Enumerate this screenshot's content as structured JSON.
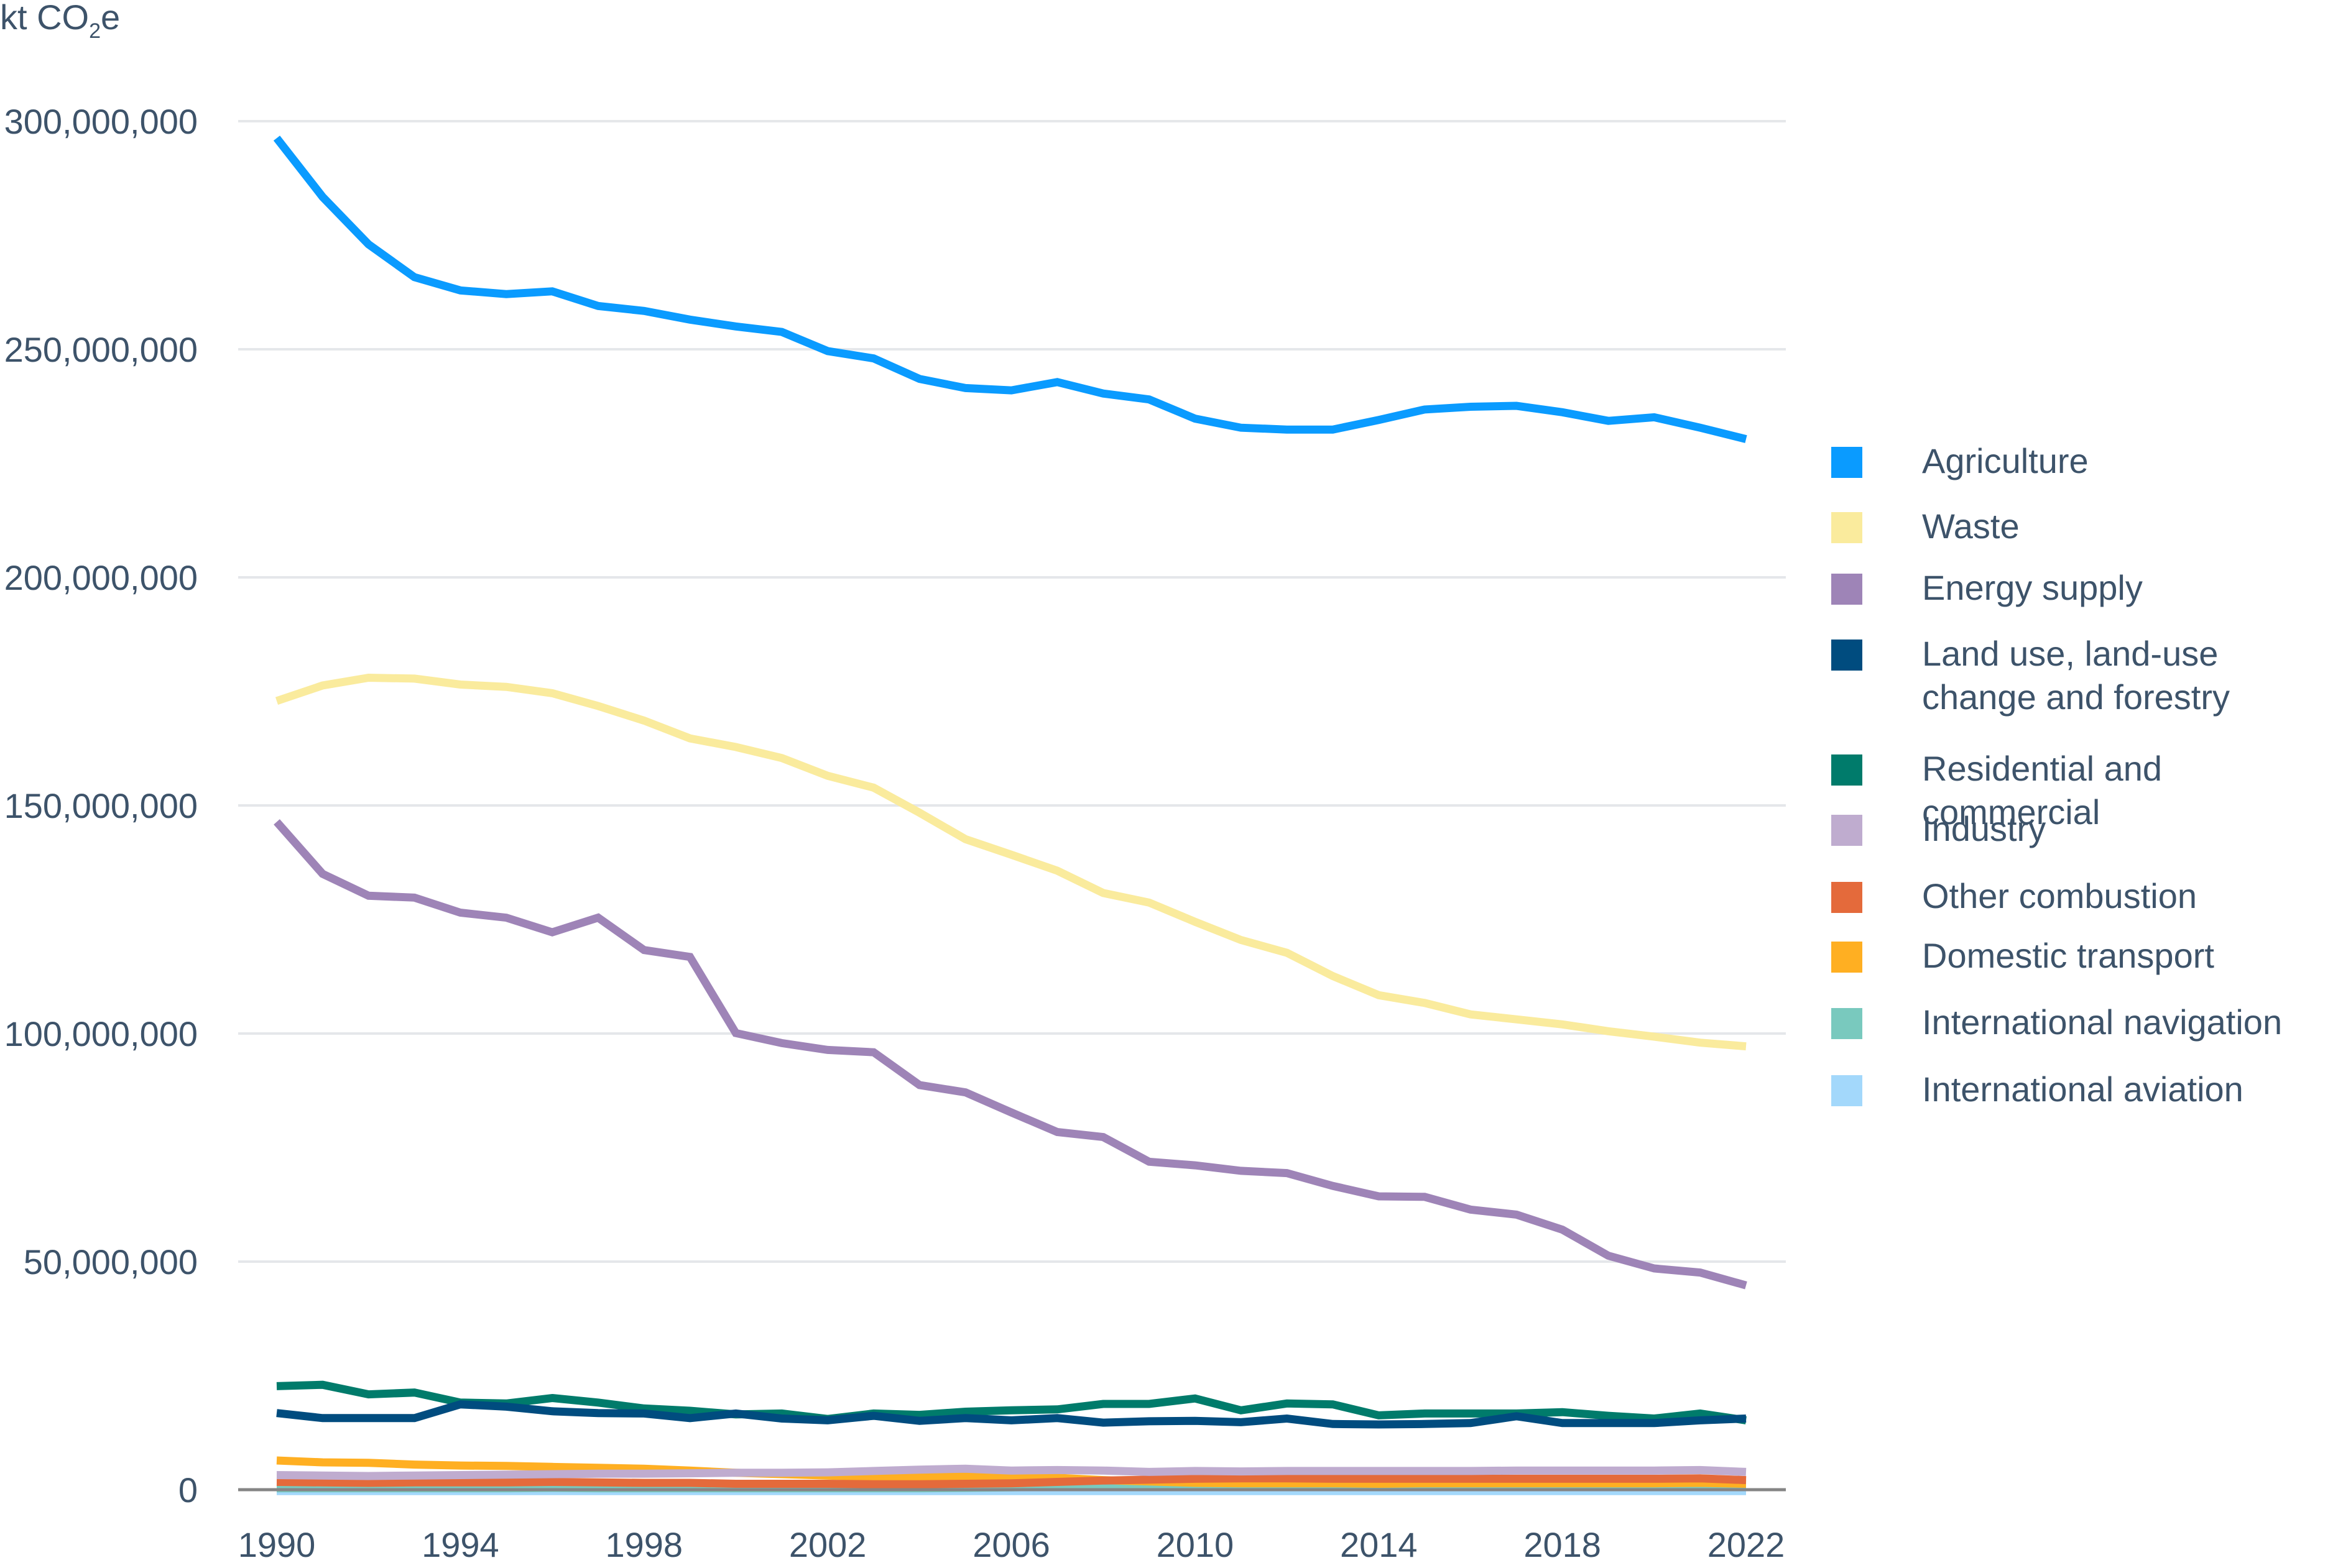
{
  "chart_data": {
    "type": "line",
    "title": "",
    "ylabel": "kt CO2e",
    "ylabel_parts": {
      "main": "kt CO",
      "sub": "2",
      "tail": "e"
    },
    "xlabel": "",
    "ylim": [
      0,
      300000000
    ],
    "yticks": [
      0,
      50000000,
      100000000,
      150000000,
      200000000,
      250000000,
      300000000
    ],
    "ytick_labels": [
      "0",
      "50,000,000",
      "100,000,000",
      "150,000,000",
      "200,000,000",
      "250,000,000",
      "300,000,000"
    ],
    "xlim": [
      1990,
      2022
    ],
    "xticks": [
      1990,
      1994,
      1998,
      2002,
      2006,
      2010,
      2014,
      2018,
      2022
    ],
    "xtick_labels": [
      "1990",
      "1994",
      "1998",
      "2002",
      "2006",
      "2010",
      "2014",
      "2018",
      "2022"
    ],
    "grid": "horizontal",
    "legend_position": "right",
    "x": [
      1990,
      1991,
      1992,
      1993,
      1994,
      1995,
      1996,
      1997,
      1998,
      1999,
      2000,
      2001,
      2002,
      2003,
      2004,
      2005,
      2006,
      2007,
      2008,
      2009,
      2010,
      2011,
      2012,
      2013,
      2014,
      2015,
      2016,
      2017,
      2018,
      2019,
      2020,
      2021,
      2022
    ],
    "series": [
      {
        "name": "Agriculture",
        "color": "#0a9bff",
        "values": [
          296300000,
          283400000,
          273000000,
          265800000,
          262900000,
          262100000,
          262700000,
          259500000,
          258400000,
          256500000,
          255000000,
          253800000,
          249600000,
          248000000,
          243500000,
          241500000,
          241000000,
          242800000,
          240300000,
          239000000,
          234800000,
          232800000,
          232400000,
          232400000,
          234500000,
          236800000,
          237400000,
          237600000,
          236200000,
          234300000,
          235100000,
          232800000,
          230300000
        ]
      },
      {
        "name": "Waste",
        "color": "#faeb9d",
        "values": [
          172900000,
          176300000,
          178000000,
          177800000,
          176500000,
          176000000,
          174600000,
          171800000,
          168600000,
          164700000,
          162800000,
          160400000,
          156500000,
          153900000,
          148400000,
          142600000,
          139200000,
          135700000,
          130800000,
          128700000,
          124500000,
          120500000,
          117700000,
          112600000,
          108400000,
          106700000,
          104200000,
          103100000,
          102000000,
          100500000,
          99300000,
          98000000,
          97200000
        ]
      },
      {
        "name": "Energy supply",
        "color": "#9e84b7",
        "values": [
          146400000,
          135000000,
          130200000,
          129800000,
          126500000,
          125400000,
          122200000,
          125400000,
          118300000,
          116800000,
          100100000,
          97900000,
          96400000,
          95900000,
          88700000,
          87100000,
          82700000,
          78400000,
          77300000,
          71900000,
          71100000,
          69900000,
          69400000,
          66600000,
          64300000,
          64200000,
          61400000,
          60300000,
          57000000,
          51300000,
          48500000,
          47600000,
          44800000
        ]
      },
      {
        "name": "Land use, land-use\nchange and forestry",
        "color": "#004c7f",
        "values": [
          16800000,
          15700000,
          15700000,
          15700000,
          18700000,
          18200000,
          17200000,
          16800000,
          16700000,
          15700000,
          16700000,
          15600000,
          15200000,
          16200000,
          15100000,
          15700000,
          15200000,
          15700000,
          14700000,
          15000000,
          15100000,
          14800000,
          15600000,
          14400000,
          14300000,
          14400000,
          14600000,
          16100000,
          14600000,
          14600000,
          14600000,
          15200000,
          15600000
        ]
      },
      {
        "name": "Residential and commercial",
        "color": "#007b6b",
        "values": [
          22700000,
          23000000,
          20900000,
          21300000,
          19100000,
          18900000,
          20100000,
          19100000,
          17800000,
          17300000,
          16500000,
          16700000,
          15500000,
          16700000,
          16400000,
          17100000,
          17400000,
          17600000,
          18800000,
          18800000,
          20000000,
          17400000,
          18900000,
          18700000,
          16300000,
          16700000,
          16700000,
          16700000,
          17000000,
          16200000,
          15600000,
          16700000,
          15200000
        ]
      },
      {
        "name": "Industry",
        "color": "#bfaccf",
        "values": [
          3200000,
          3100000,
          3000000,
          3100000,
          3200000,
          3300000,
          3400000,
          3500000,
          3500000,
          3600000,
          3700000,
          3700000,
          3800000,
          4100000,
          4400000,
          4600000,
          4200000,
          4300000,
          4200000,
          3900000,
          4100000,
          4000000,
          4100000,
          4100000,
          4100000,
          4100000,
          4100000,
          4200000,
          4200000,
          4200000,
          4200000,
          4300000,
          3900000
        ]
      },
      {
        "name": "Other combustion",
        "color": "#e46a3b",
        "values": [
          1700000,
          1600000,
          1500000,
          1600000,
          1600000,
          1600000,
          1700000,
          1600000,
          1500000,
          1500000,
          1300000,
          1300000,
          1300000,
          1200000,
          1200000,
          1300000,
          1400000,
          1700000,
          2000000,
          2200000,
          2400000,
          2500000,
          2500000,
          2400000,
          2400000,
          2400000,
          2400000,
          2400000,
          2400000,
          2400000,
          2400000,
          2500000,
          2100000
        ]
      },
      {
        "name": "Domestic transport",
        "color": "#ffaf22",
        "values": [
          6400000,
          6000000,
          5900000,
          5500000,
          5300000,
          5200000,
          5000000,
          4800000,
          4600000,
          4200000,
          3700000,
          3400000,
          3100000,
          2800000,
          2700000,
          3000000,
          3100000,
          2600000,
          2100000,
          1800000,
          1500000,
          1400000,
          1400000,
          1400000,
          1300000,
          1400000,
          1400000,
          1400000,
          1400000,
          1400000,
          1400000,
          1500000,
          1300000
        ]
      },
      {
        "name": "International navigation",
        "color": "#79c9be",
        "values": [
          300000,
          300000,
          300000,
          300000,
          300000,
          300000,
          400000,
          300000,
          300000,
          300000,
          300000,
          300000,
          300000,
          300000,
          300000,
          400000,
          500000,
          700000,
          900000,
          1000000,
          1100000,
          1100000,
          1100000,
          1000000,
          1000000,
          1000000,
          1000000,
          1000000,
          1000000,
          1000000,
          1000000,
          1000000,
          1000000
        ]
      },
      {
        "name": "International aviation",
        "color": "#a3d8fb",
        "values": [
          -300000,
          -300000,
          -300000,
          -300000,
          -300000,
          -300000,
          -300000,
          -300000,
          -300000,
          -300000,
          -300000,
          -300000,
          -300000,
          -300000,
          -300000,
          -300000,
          -300000,
          -300000,
          -300000,
          -300000,
          -300000,
          -300000,
          -300000,
          -300000,
          -300000,
          -300000,
          -300000,
          -300000,
          -300000,
          -300000,
          -300000,
          -300000,
          -300000
        ]
      }
    ]
  },
  "colors": {
    "axis_text": "#3d536a",
    "gridline": "#e5e7ea",
    "baseline": "#858585"
  }
}
